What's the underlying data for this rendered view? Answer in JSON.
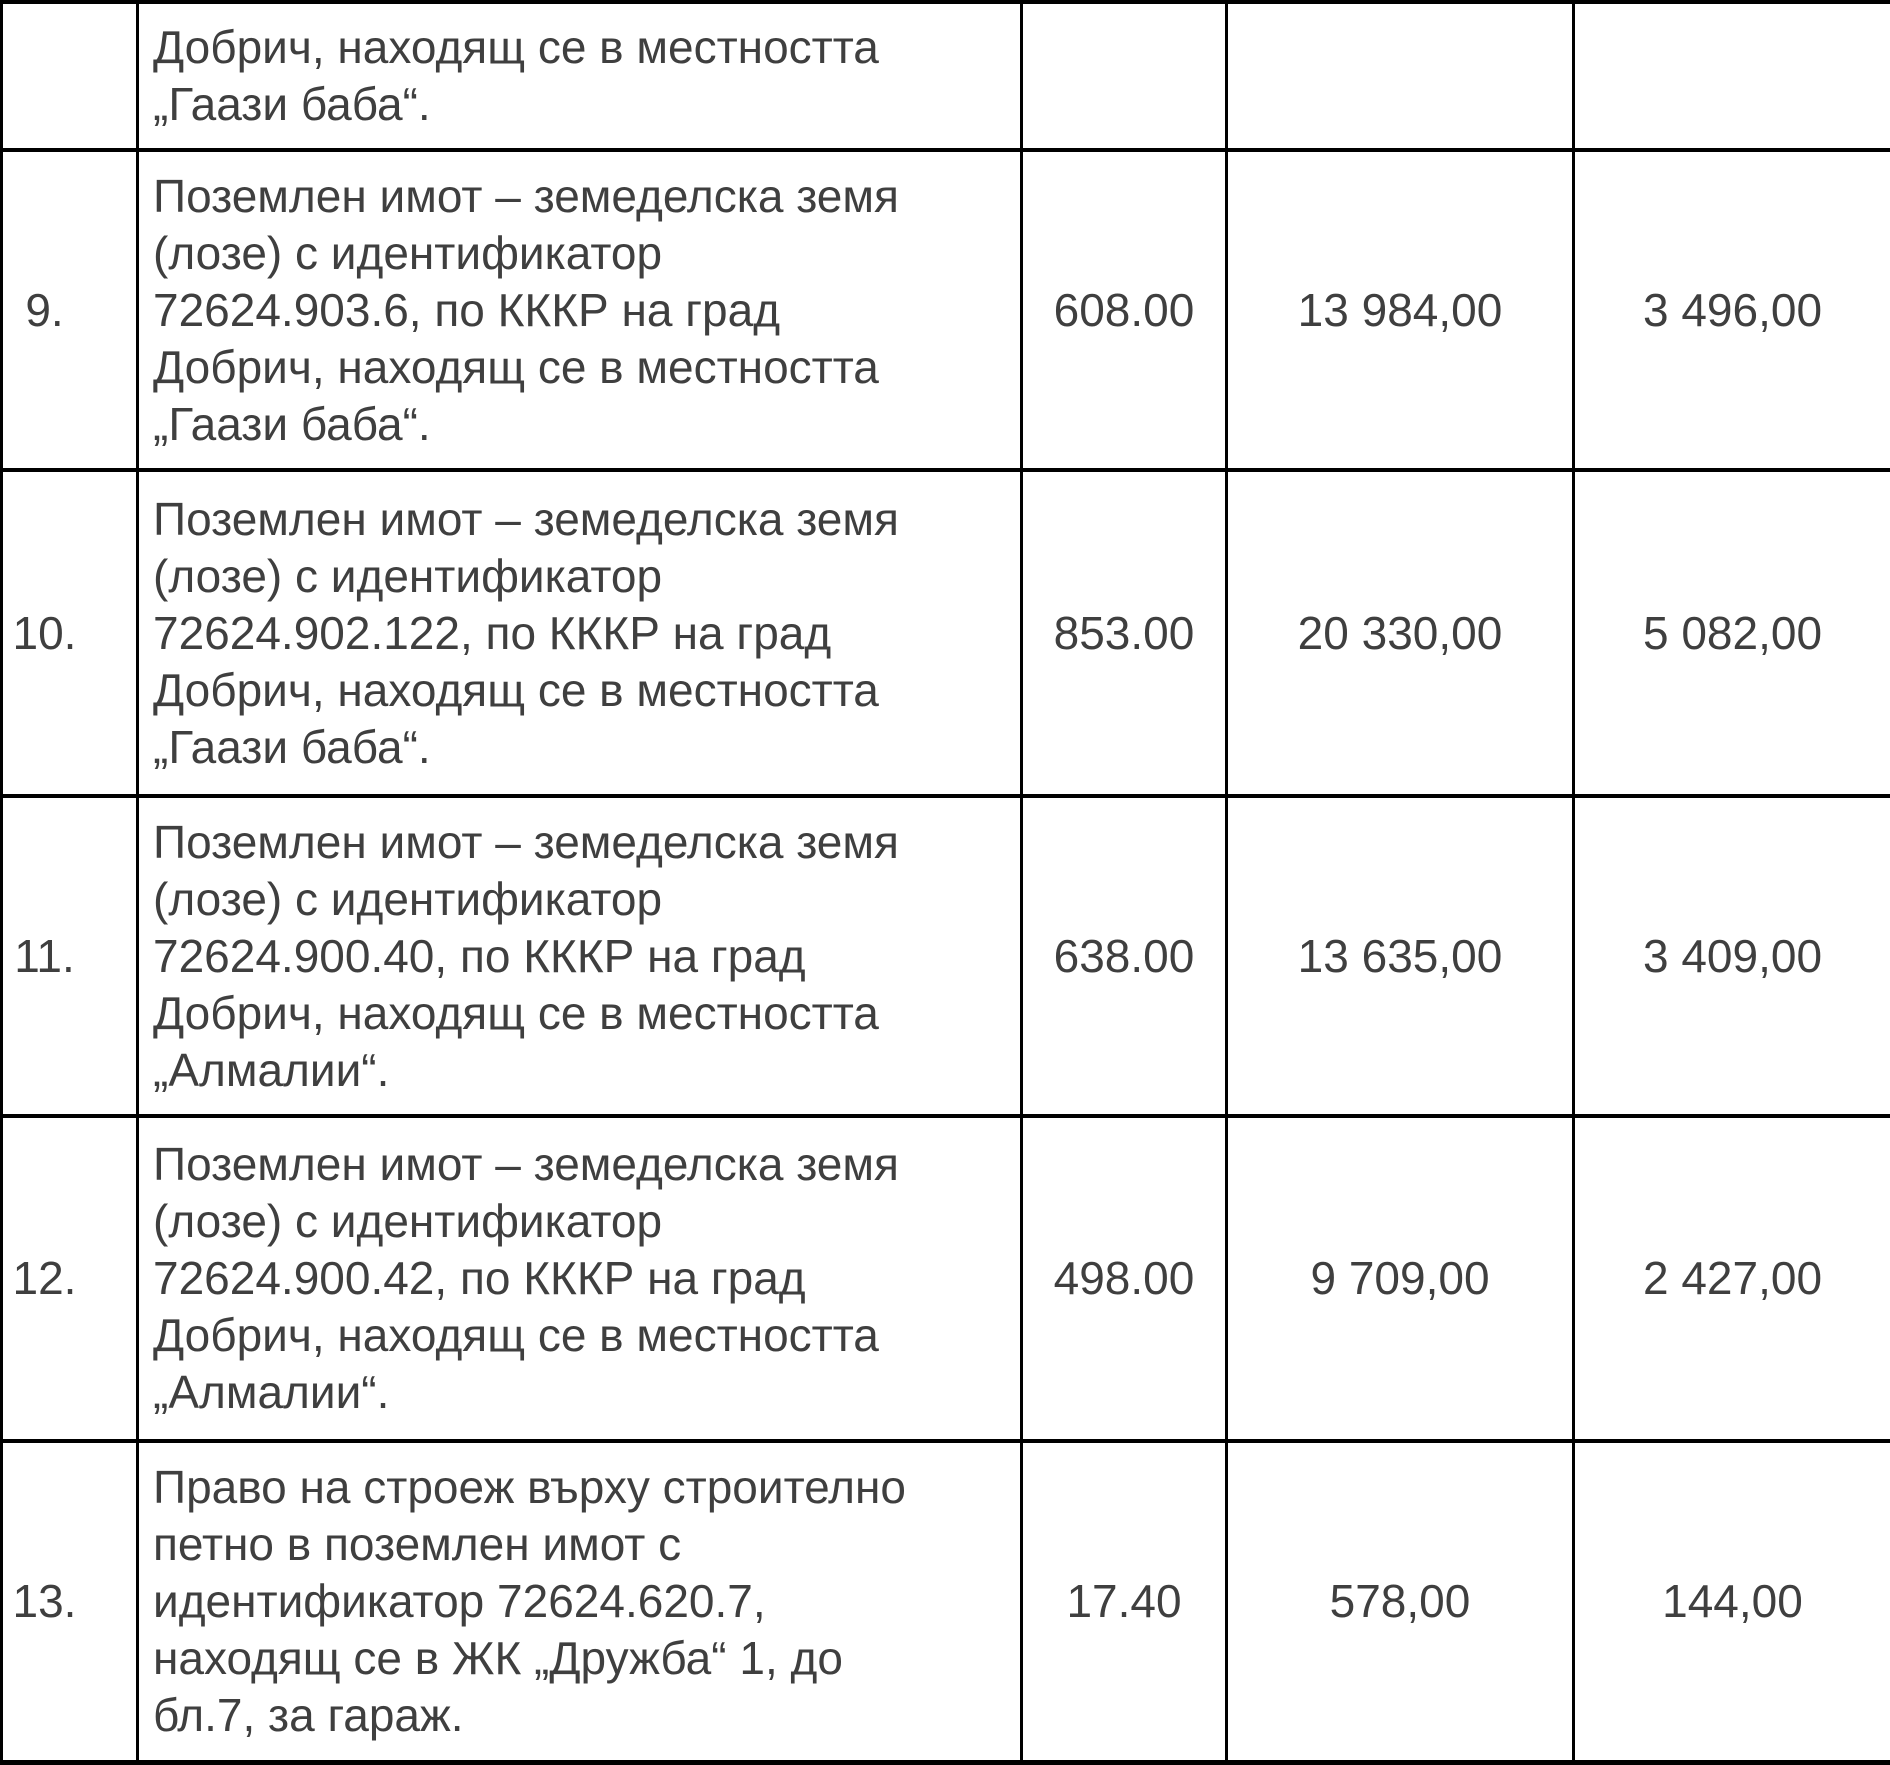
{
  "page": {
    "background": "#ffffff",
    "text_color": "#3f3f3f",
    "border_color": "#000000"
  },
  "table": {
    "partial_row": {
      "number": "",
      "description_lines": [
        "Добрич, находящ се в местността",
        "„Гаази баба“."
      ],
      "col3_value": "",
      "col4_value": "",
      "col5_value": ""
    },
    "rows": [
      {
        "number": "9.",
        "description_lines": [
          "Поземлен имот – земеделска земя",
          "(лозе) с идентификатор",
          "72624.903.6, по КККР на град",
          "Добрич, находящ се в местността",
          "„Гаази баба“."
        ],
        "col3_value": "608.00",
        "col4_value": "13 984,00",
        "col5_value": "3 496,00"
      },
      {
        "number": "10.",
        "description_lines": [
          "Поземлен имот – земеделска земя",
          "(лозе) с идентификатор",
          "72624.902.122, по КККР на град",
          "Добрич, находящ се в местността",
          "„Гаази баба“."
        ],
        "col3_value": "853.00",
        "col4_value": "20 330,00",
        "col5_value": "5 082,00"
      },
      {
        "number": "11.",
        "description_lines": [
          "Поземлен имот – земеделска земя",
          "(лозе) с идентификатор",
          "72624.900.40, по КККР на град",
          "Добрич, находящ се в местността",
          "„Алмалии“."
        ],
        "col3_value": "638.00",
        "col4_value": "13 635,00",
        "col5_value": "3 409,00"
      },
      {
        "number": "12.",
        "description_lines": [
          "Поземлен имот – земеделска земя",
          "(лозе) с идентификатор",
          "72624.900.42, по КККР на град",
          "Добрич, находящ се в местността",
          "„Алмалии“."
        ],
        "col3_value": "498.00",
        "col4_value": "9 709,00",
        "col5_value": "2 427,00"
      },
      {
        "number": "13.",
        "description_lines": [
          "Право на строеж върху строително",
          "петно в поземлен имот с",
          "идентификатор 72624.620.7,",
          "находящ се в ЖК „Дружба“ 1, до",
          "бл.7, за гараж."
        ],
        "col3_value": "17.40",
        "col4_value": "578,00",
        "col5_value": "144,00"
      }
    ]
  }
}
